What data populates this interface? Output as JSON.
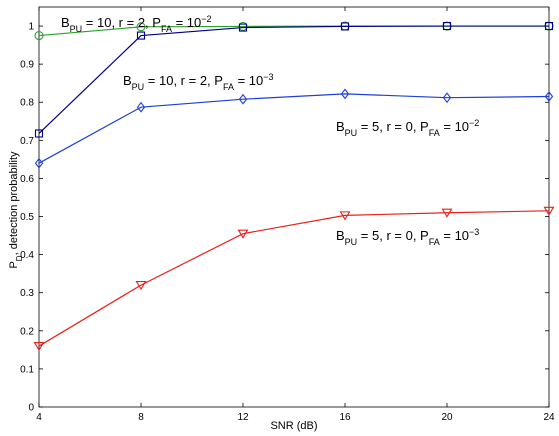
{
  "chart_data": {
    "type": "line",
    "xlabel": "SNR (dB)",
    "ylabel": "P_D, detection probability",
    "xlim": [
      4,
      24
    ],
    "ylim": [
      0,
      1.05
    ],
    "x_ticks": [
      4,
      8,
      12,
      16,
      20,
      24
    ],
    "y_ticks": [
      0,
      0.1,
      0.2,
      0.3,
      0.4,
      0.5,
      0.6,
      0.7,
      0.8,
      0.9,
      1
    ],
    "grid": false,
    "legend": "none (series labeled by in-plot annotations)",
    "series": [
      {
        "label": "B_PU = 10, r = 2, P_FA = 10^-2",
        "color": "#2ca02c",
        "marker": "circle",
        "x": [
          4,
          8,
          12,
          16,
          20,
          24
        ],
        "y": [
          0.975,
          0.998,
          0.999,
          1.0,
          1.0,
          1.0
        ]
      },
      {
        "label": "B_PU = 10, r = 2, P_FA = 10^-3",
        "color": "#00008b",
        "marker": "square",
        "x": [
          4,
          8,
          12,
          16,
          20,
          24
        ],
        "y": [
          0.718,
          0.975,
          0.996,
          0.999,
          1.0,
          1.0
        ]
      },
      {
        "label": "B_PU = 5, r = 0, P_FA = 10^-2",
        "color": "#1f3fd6",
        "marker": "diamond",
        "x": [
          4,
          8,
          12,
          16,
          20,
          24
        ],
        "y": [
          0.64,
          0.787,
          0.808,
          0.822,
          0.812,
          0.815
        ]
      },
      {
        "label": "B_PU = 5, r = 0, P_FA = 10^-3",
        "color": "#e8201a",
        "marker": "triangle-down",
        "x": [
          4,
          8,
          12,
          16,
          20,
          24
        ],
        "y": [
          0.16,
          0.32,
          0.455,
          0.503,
          0.51,
          0.515
        ]
      }
    ],
    "annotations": [
      {
        "base": "B",
        "base_sub": "PU",
        "mid": " = 10, r = 2, P",
        "mid_sub": "FA",
        "tail": " = 10",
        "exp": "−2"
      },
      {
        "base": "B",
        "base_sub": "PU",
        "mid": " = 10, r = 2, P",
        "mid_sub": "FA",
        "tail": " = 10",
        "exp": "−3"
      },
      {
        "base": "B",
        "base_sub": "PU",
        "mid": " = 5, r = 0, P",
        "mid_sub": "FA",
        "tail": " = 10",
        "exp": "−2"
      },
      {
        "base": "B",
        "base_sub": "PU",
        "mid": " = 5, r = 0, P",
        "mid_sub": "FA",
        "tail": " = 10",
        "exp": "−3"
      }
    ],
    "ylabel_parts": {
      "main": "P",
      "sub": "D",
      "rest": ", detection probability"
    }
  }
}
